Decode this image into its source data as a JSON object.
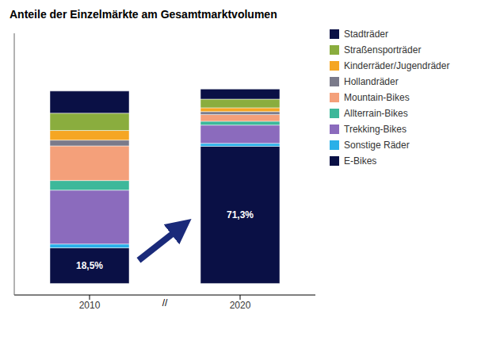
{
  "chart_data": {
    "type": "bar",
    "stacked": true,
    "title": "Anteile der Einzelmärkte am Gesamtmarktvolumen",
    "categories": [
      "2010",
      "2020"
    ],
    "series": [
      {
        "name": "E-Bikes",
        "color": "#0a1045",
        "values": [
          18.5,
          71.3
        ],
        "value_labels": [
          "18,5%",
          "71,3%"
        ],
        "data_labels": true
      },
      {
        "name": "Sonstige Räder",
        "color": "#29b0e8",
        "values": [
          2.0,
          1.5
        ]
      },
      {
        "name": "Trekking-Bikes",
        "color": "#8b6bbd",
        "values": [
          28.0,
          9.5
        ]
      },
      {
        "name": "Allterrain-Bikes",
        "color": "#3db89a",
        "values": [
          5.0,
          2.0
        ]
      },
      {
        "name": "Mountain-Bikes",
        "color": "#f4a07a",
        "values": [
          18.0,
          3.5
        ]
      },
      {
        "name": "Hollandräder",
        "color": "#7a7a8a",
        "values": [
          3.0,
          1.5
        ]
      },
      {
        "name": "Kinderräder/Jugendräder",
        "color": "#f5a623",
        "values": [
          5.0,
          2.0
        ]
      },
      {
        "name": "Straßensporträder",
        "color": "#8aad3e",
        "values": [
          9.0,
          4.5
        ]
      },
      {
        "name": "Stadträder",
        "color": "#0a1045",
        "values": [
          11.5,
          5.2
        ]
      }
    ],
    "ylim": [
      -6,
      130
    ],
    "tick_labels": "x",
    "legend": "right",
    "grid": false,
    "annotations": [
      {
        "text": "//"
      }
    ]
  }
}
